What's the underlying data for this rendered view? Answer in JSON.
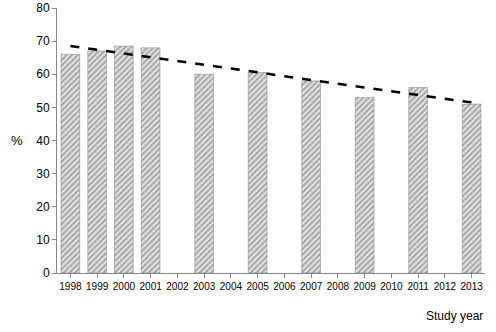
{
  "chart_data": {
    "type": "bar",
    "categories": [
      "1998",
      "1999",
      "2000",
      "2001",
      "2002",
      "2003",
      "2004",
      "2005",
      "2006",
      "2007",
      "2008",
      "2009",
      "2010",
      "2011",
      "2012",
      "2013"
    ],
    "series": [
      {
        "type": "bar",
        "color": "#a6a6a6",
        "marker": "hatch",
        "values": [
          66,
          67,
          68.5,
          68,
          null,
          60,
          null,
          60.5,
          null,
          58,
          null,
          53,
          null,
          56,
          null,
          51
        ]
      },
      {
        "type": "line",
        "color": "#000000",
        "line_style": "dash",
        "values": [
          68.5,
          67.4,
          66.2,
          65.1,
          64.0,
          62.8,
          61.7,
          60.6,
          59.4,
          58.3,
          57.2,
          56.0,
          54.9,
          53.8,
          52.6,
          51.5
        ]
      }
    ],
    "x_label": "Study year",
    "y_label": "%",
    "ylim": [
      0,
      80
    ],
    "yticks": [
      0,
      10,
      20,
      30,
      40,
      50,
      60,
      70,
      80
    ],
    "grid": false
  }
}
